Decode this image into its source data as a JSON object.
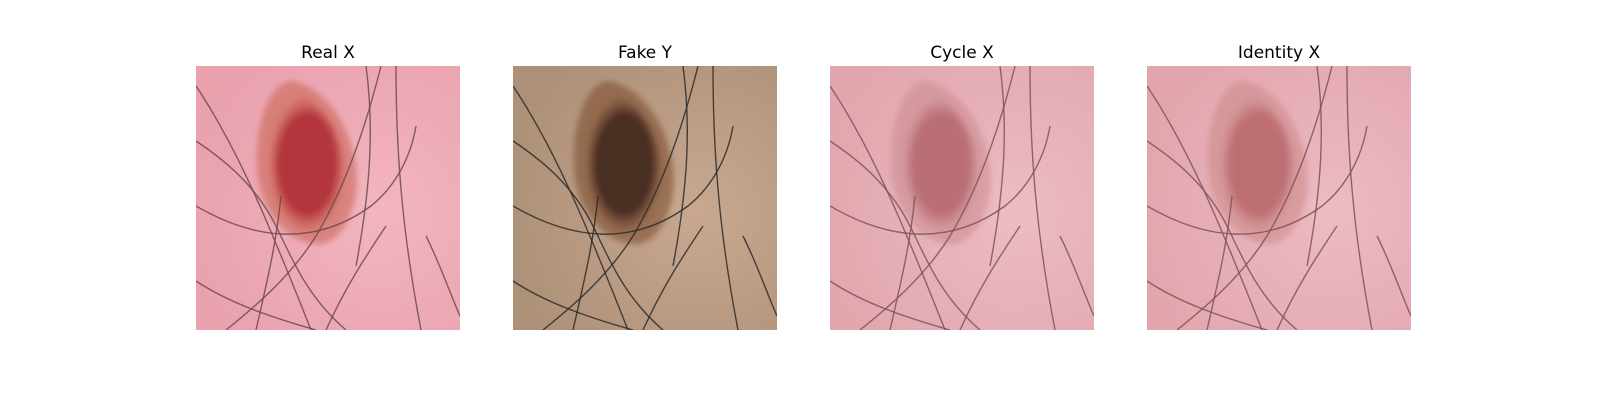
{
  "panels": [
    {
      "title": "Real X",
      "skin": "#e9a1ae",
      "skin_light": "#f2b5c0",
      "lesion": "#b3363c",
      "lesion_edge": "#c9604e",
      "hair": "#6f4a4c"
    },
    {
      "title": "Fake Y",
      "skin": "#ad9078",
      "skin_light": "#c8a890",
      "lesion": "#4a2f24",
      "lesion_edge": "#7a4a2c",
      "hair": "#2d2b2c"
    },
    {
      "title": "Cycle X",
      "skin": "#e1a6ae",
      "skin_light": "#edbcc3",
      "lesion": "#b96e74",
      "lesion_edge": "#c98a8e",
      "hair": "#7e5458"
    },
    {
      "title": "Identity X",
      "skin": "#e2a5ae",
      "skin_light": "#edbbc3",
      "lesion": "#bd6e72",
      "lesion_edge": "#cb8886",
      "hair": "#7d5356"
    }
  ]
}
